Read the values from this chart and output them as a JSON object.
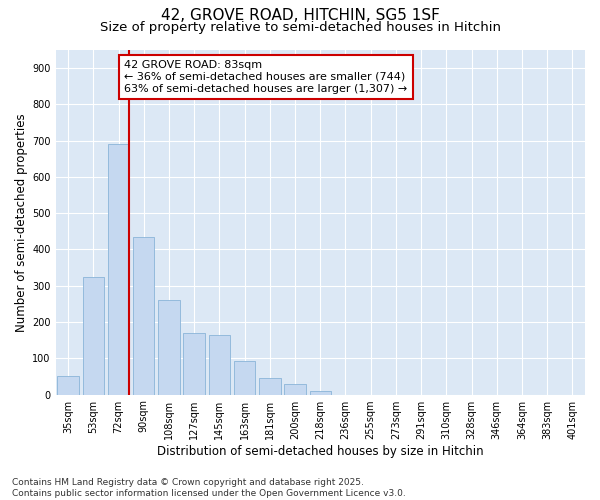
{
  "title_line1": "42, GROVE ROAD, HITCHIN, SG5 1SF",
  "title_line2": "Size of property relative to semi-detached houses in Hitchin",
  "xlabel": "Distribution of semi-detached houses by size in Hitchin",
  "ylabel": "Number of semi-detached properties",
  "categories": [
    "35sqm",
    "53sqm",
    "72sqm",
    "90sqm",
    "108sqm",
    "127sqm",
    "145sqm",
    "163sqm",
    "181sqm",
    "200sqm",
    "218sqm",
    "236sqm",
    "255sqm",
    "273sqm",
    "291sqm",
    "310sqm",
    "328sqm",
    "346sqm",
    "364sqm",
    "383sqm",
    "401sqm"
  ],
  "values": [
    50,
    325,
    690,
    435,
    260,
    170,
    165,
    92,
    47,
    30,
    10,
    0,
    0,
    0,
    0,
    0,
    0,
    0,
    0,
    0,
    0
  ],
  "bar_color": "#c5d8f0",
  "bar_edge_color": "#8ab4d8",
  "vline_color": "#cc0000",
  "annotation_text": "42 GROVE ROAD: 83sqm\n← 36% of semi-detached houses are smaller (744)\n63% of semi-detached houses are larger (1,307) →",
  "annotation_box_facecolor": "white",
  "annotation_box_edgecolor": "#cc0000",
  "ylim": [
    0,
    950
  ],
  "yticks": [
    0,
    100,
    200,
    300,
    400,
    500,
    600,
    700,
    800,
    900
  ],
  "background_color": "#ffffff",
  "plot_bg_color": "#dce8f5",
  "grid_color": "#ffffff",
  "footer_text": "Contains HM Land Registry data © Crown copyright and database right 2025.\nContains public sector information licensed under the Open Government Licence v3.0.",
  "title_fontsize": 11,
  "subtitle_fontsize": 9.5,
  "axis_label_fontsize": 8.5,
  "tick_fontsize": 7,
  "annotation_fontsize": 8,
  "footer_fontsize": 6.5
}
